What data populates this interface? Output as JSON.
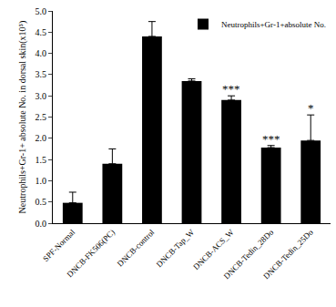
{
  "chart_data": {
    "type": "bar",
    "y_label": "Neutrophils+Gr-1+ absolute No. in dorsal skin(x10⁵)",
    "categories": [
      "SPF-Normal",
      "DNCB-FK506(PC)",
      "DNCB-control",
      "DNCB-Tap_W",
      "DNCB-ACS_W",
      "DNCB-Tedin_28Do",
      "DNCB-Tedin_25Do"
    ],
    "series": [
      {
        "name": "Neutrophils+Gr-1+absolute No.",
        "color": "#000000",
        "values": [
          0.48,
          1.4,
          4.4,
          3.35,
          2.9,
          1.78,
          1.95
        ],
        "errors": [
          0.25,
          0.35,
          0.35,
          0.05,
          0.1,
          0.05,
          0.6
        ]
      }
    ],
    "annotations": [
      {
        "category": "DNCB-ACS_W",
        "text": "***"
      },
      {
        "category": "DNCB-Tedin_28Do",
        "text": "***"
      },
      {
        "category": "DNCB-Tedin_25Do",
        "text": "*"
      }
    ],
    "ylim": [
      0,
      5
    ],
    "yticks": [
      {
        "value": 0,
        "label": "0.0"
      },
      0.5,
      {
        "value": 1,
        "label": "1.0"
      },
      1.5,
      {
        "value": 2,
        "label": "2.0"
      },
      2.5,
      {
        "value": 3,
        "label": "3.0"
      },
      3.5,
      {
        "value": 4,
        "label": "4.0"
      },
      4.5,
      {
        "value": 5,
        "label": "5.0"
      }
    ],
    "grid": false,
    "legend": "top-right"
  }
}
